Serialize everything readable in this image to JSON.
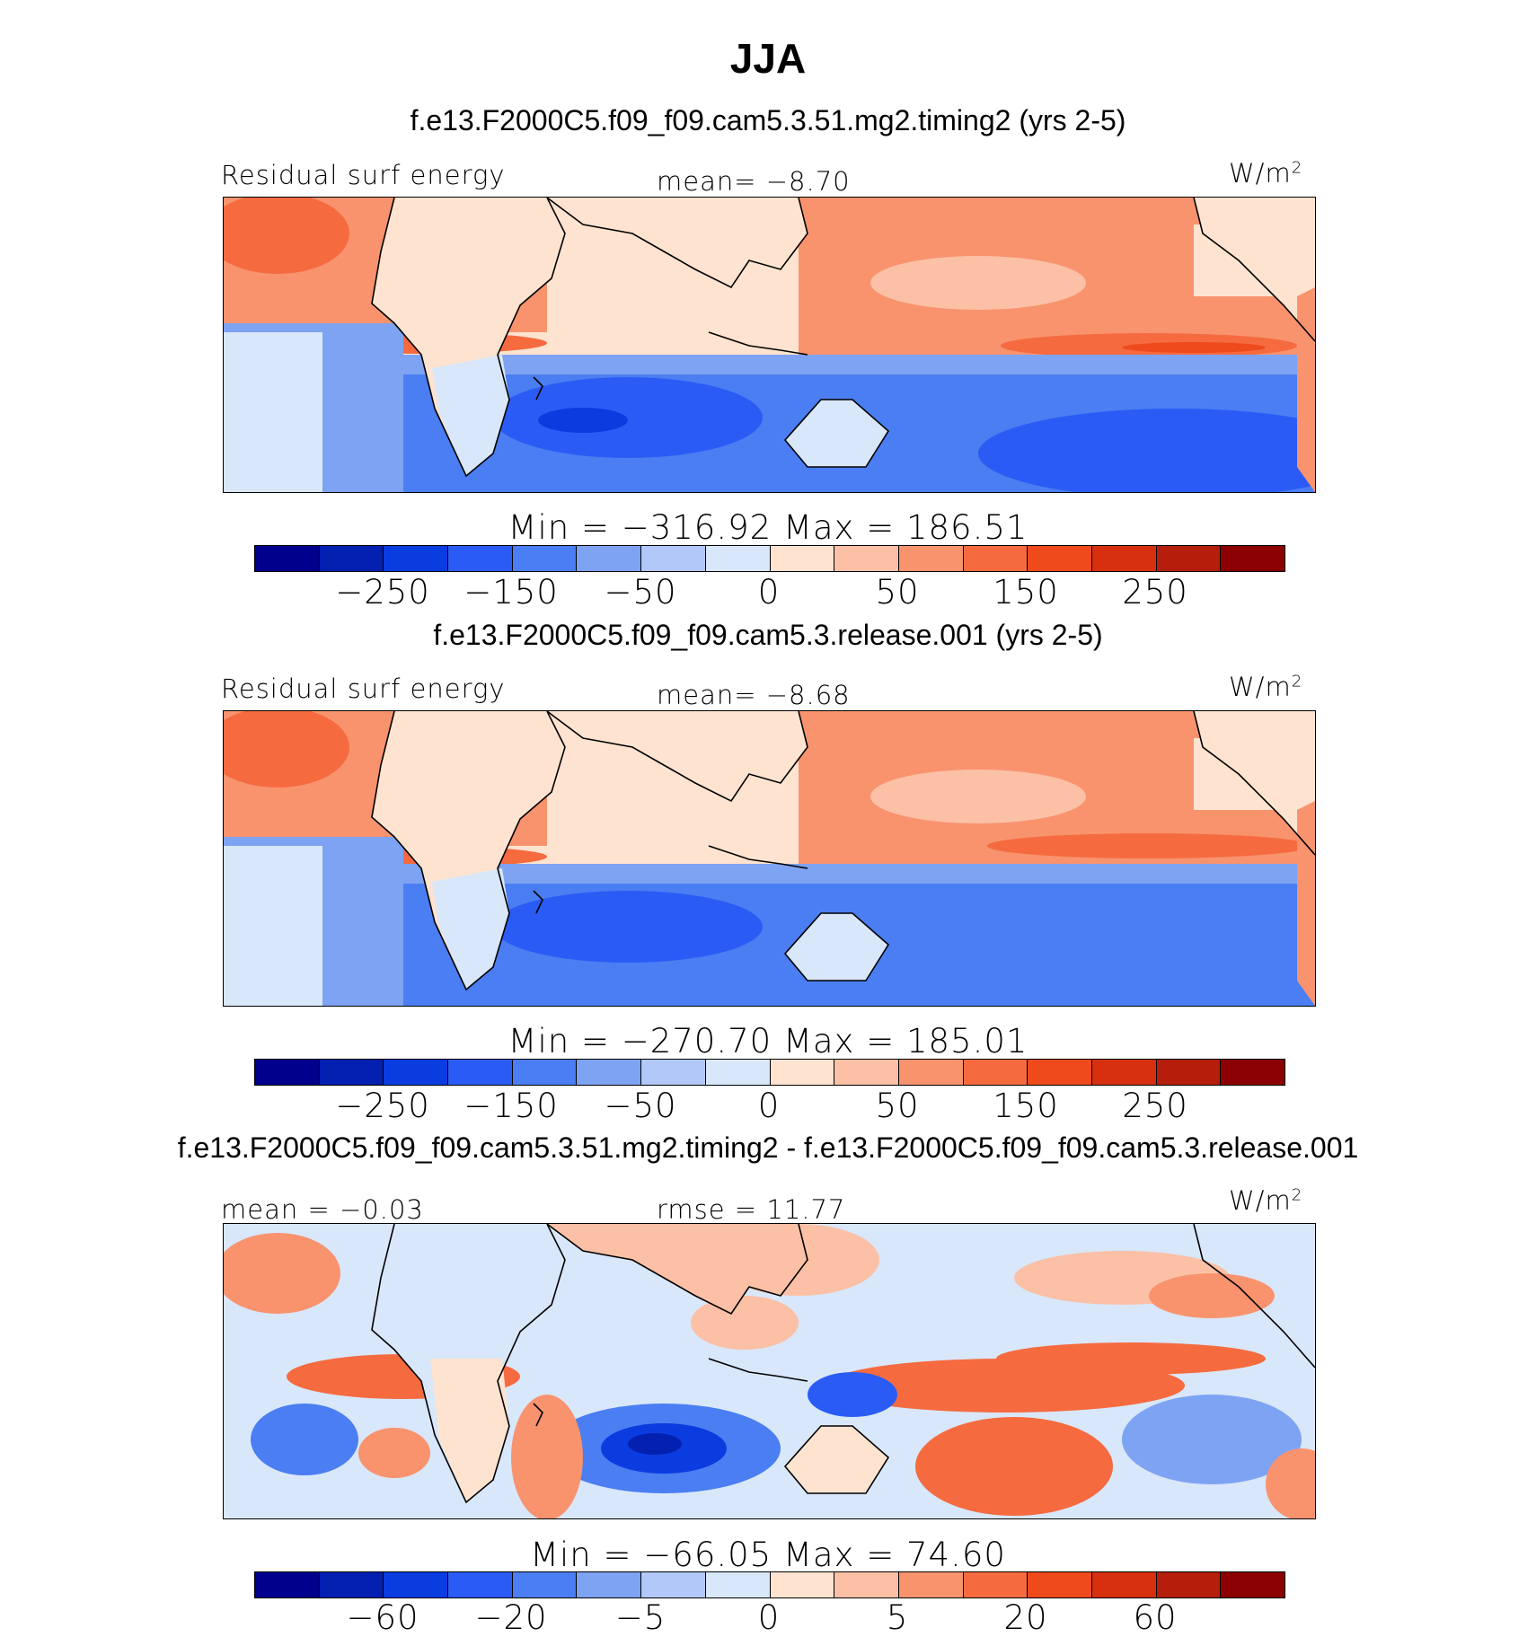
{
  "figure": {
    "title": "JJA",
    "units": "W/m",
    "units_exp": "2"
  },
  "panels": [
    {
      "case": "f.e13.F2000C5.f09_f09.cam5.3.51.mg2.timing2 (yrs 2-5)",
      "var_label": "Residual surf energy",
      "stat_label": "mean=   −8.70",
      "minmax": "Min  =  −316.92  Max  =  186.51",
      "cbar_ticks": [
        "−250",
        "−150",
        "−50",
        "0",
        "50",
        "150",
        "250"
      ],
      "field": "base"
    },
    {
      "case": "f.e13.F2000C5.f09_f09.cam5.3.release.001 (yrs 2-5)",
      "var_label": "Residual surf energy",
      "stat_label": "mean=   −8.68",
      "minmax": "Min  =  −270.70  Max  =  185.01",
      "cbar_ticks": [
        "−250",
        "−150",
        "−50",
        "0",
        "50",
        "150",
        "250"
      ],
      "field": "base"
    },
    {
      "case": "f.e13.F2000C5.f09_f09.cam5.3.51.mg2.timing2 - f.e13.F2000C5.f09_f09.cam5.3.release.001",
      "var_label": "mean  =   −0.03",
      "stat_label": "rmse  =   11.77",
      "minmax": "Min  =  −66.05  Max  =   74.60",
      "cbar_ticks": [
        "−60",
        "−20",
        "−5",
        "0",
        "5",
        "20",
        "60"
      ],
      "field": "diff"
    }
  ],
  "colors": {
    "colorbar": [
      "#00008c",
      "#0320b0",
      "#0a3ce0",
      "#2a5cf5",
      "#4a7ef2",
      "#7ea3f2",
      "#b1c8f8",
      "#d9e7fa",
      "#fde3d0",
      "#fbc0a5",
      "#f8936e",
      "#f56b3f",
      "#ee4a1c",
      "#d63010",
      "#b41e0a",
      "#8b0000"
    ],
    "land_line": "#000000"
  }
}
